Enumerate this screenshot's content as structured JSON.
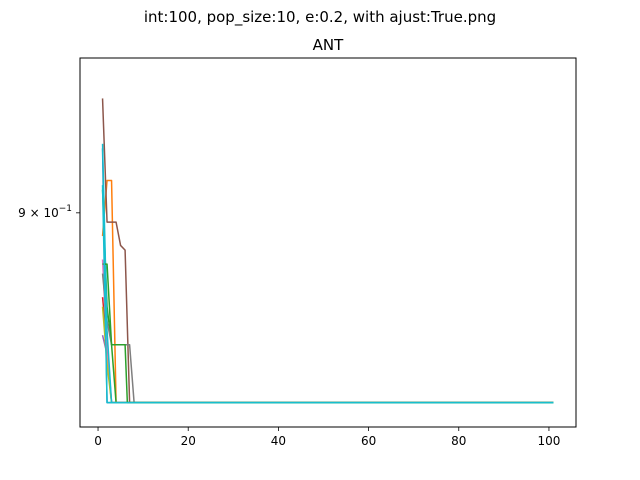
{
  "chart_data": {
    "type": "line",
    "suptitle": "int:100, pop_size:10, e:0.2, with ajust:True.png",
    "title": "ANT",
    "xlabel": "",
    "ylabel": "",
    "xlim": [
      -4,
      106
    ],
    "ylim": [
      0.855,
      0.934
    ],
    "yscale": "log",
    "grid": false,
    "x_ticks": [
      {
        "value": 0,
        "label": "0"
      },
      {
        "value": 20,
        "label": "20"
      },
      {
        "value": 40,
        "label": "40"
      },
      {
        "value": 60,
        "label": "60"
      },
      {
        "value": 80,
        "label": "80"
      },
      {
        "value": 100,
        "label": "100"
      }
    ],
    "y_ticks": [
      {
        "value": 0.9,
        "label": "9 × 10",
        "exp": "−1"
      }
    ],
    "series": [
      {
        "color": "#1f77b4",
        "points": [
          [
            1,
            0.914
          ],
          [
            2,
            0.86
          ],
          [
            101,
            0.86
          ]
        ]
      },
      {
        "color": "#ff7f0e",
        "points": [
          [
            1,
            0.895
          ],
          [
            2,
            0.907
          ],
          [
            3,
            0.907
          ],
          [
            4,
            0.86
          ],
          [
            101,
            0.86
          ]
        ]
      },
      {
        "color": "#2ca02c",
        "points": [
          [
            1,
            0.905
          ],
          [
            2,
            0.88
          ],
          [
            3,
            0.872
          ],
          [
            4,
            0.86
          ],
          [
            101,
            0.86
          ]
        ]
      },
      {
        "color": "#d62728",
        "points": [
          [
            1,
            0.882
          ],
          [
            2,
            0.872
          ],
          [
            3,
            0.86
          ],
          [
            101,
            0.86
          ]
        ]
      },
      {
        "color": "#9467bd",
        "points": [
          [
            1,
            0.874
          ],
          [
            2,
            0.87
          ],
          [
            3,
            0.86
          ],
          [
            101,
            0.86
          ]
        ]
      },
      {
        "color": "#8c564b",
        "points": [
          [
            1,
            0.925
          ],
          [
            2,
            0.898
          ],
          [
            4,
            0.898
          ],
          [
            5,
            0.893
          ],
          [
            6,
            0.892
          ],
          [
            7,
            0.86
          ],
          [
            101,
            0.86
          ]
        ]
      },
      {
        "color": "#e377c2",
        "points": [
          [
            1,
            0.89
          ],
          [
            2,
            0.87
          ],
          [
            3,
            0.86
          ],
          [
            101,
            0.86
          ]
        ]
      },
      {
        "color": "#7f7f7f",
        "points": [
          [
            1,
            0.887
          ],
          [
            2,
            0.877
          ],
          [
            3,
            0.872
          ],
          [
            7,
            0.872
          ],
          [
            8,
            0.86
          ],
          [
            101,
            0.86
          ]
        ]
      },
      {
        "color": "#bcbd22",
        "points": [
          [
            1,
            0.88
          ],
          [
            2,
            0.868
          ],
          [
            3,
            0.86
          ],
          [
            101,
            0.86
          ]
        ]
      },
      {
        "color": "#17becf",
        "points": [
          [
            1,
            0.915
          ],
          [
            2,
            0.875
          ],
          [
            3,
            0.86
          ],
          [
            101,
            0.86
          ]
        ]
      },
      {
        "color": "#2ca02c",
        "points": [
          [
            1,
            0.889
          ],
          [
            2,
            0.889
          ],
          [
            3,
            0.872
          ],
          [
            6,
            0.872
          ],
          [
            6.5,
            0.86
          ],
          [
            101,
            0.86
          ]
        ]
      },
      {
        "color": "#17becf",
        "points": [
          [
            1,
            0.906
          ],
          [
            2,
            0.86
          ],
          [
            101,
            0.86
          ]
        ]
      }
    ]
  }
}
